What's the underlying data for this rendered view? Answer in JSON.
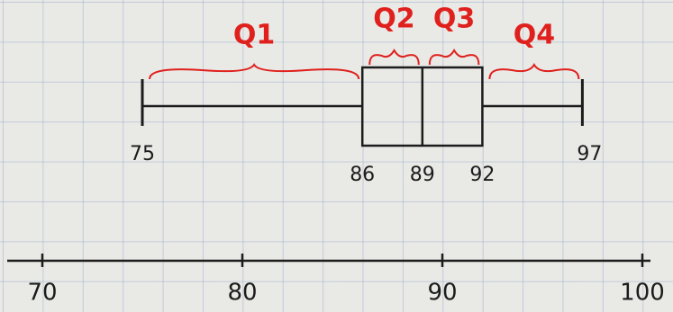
{
  "chart_data": {
    "type": "box",
    "annotations": [
      "Q1",
      "Q2",
      "Q3",
      "Q4"
    ],
    "stats": {
      "min": 75,
      "q1": 86,
      "median": 89,
      "q3": 92,
      "max": 97
    },
    "xlim": [
      70,
      100
    ],
    "xticks": [
      70,
      80,
      90,
      100
    ],
    "color": "#1c1c1c",
    "annotation_color": "#e0201c"
  }
}
